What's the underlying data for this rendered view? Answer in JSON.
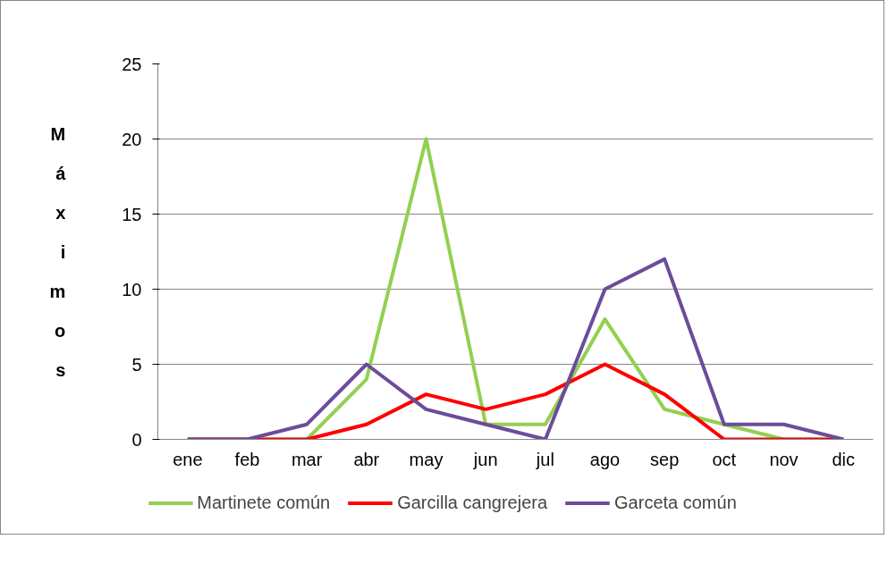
{
  "chart_data": {
    "type": "line",
    "ylabel": "Máximos",
    "categories": [
      "ene",
      "feb",
      "mar",
      "abr",
      "may",
      "jun",
      "jul",
      "ago",
      "sep",
      "oct",
      "nov",
      "dic"
    ],
    "series": [
      {
        "name": "Martinete común",
        "color": "#92d050",
        "values": [
          0,
          0,
          0,
          4,
          20,
          1,
          1,
          8,
          2,
          1,
          0,
          0
        ]
      },
      {
        "name": "Garcilla cangrejera",
        "color": "#ff0000",
        "values": [
          0,
          0,
          0,
          1,
          3,
          2,
          3,
          5,
          3,
          0,
          0,
          0
        ]
      },
      {
        "name": "Garceta común",
        "color": "#6b4c9a",
        "values": [
          0,
          0,
          1,
          5,
          2,
          1,
          0,
          10,
          12,
          1,
          1,
          0
        ]
      }
    ],
    "ylim": [
      0,
      25
    ],
    "yticks": [
      0,
      5,
      10,
      15,
      20,
      25
    ],
    "grid": "y",
    "legend": "bottom",
    "marker": "none",
    "line_style": "solid"
  }
}
